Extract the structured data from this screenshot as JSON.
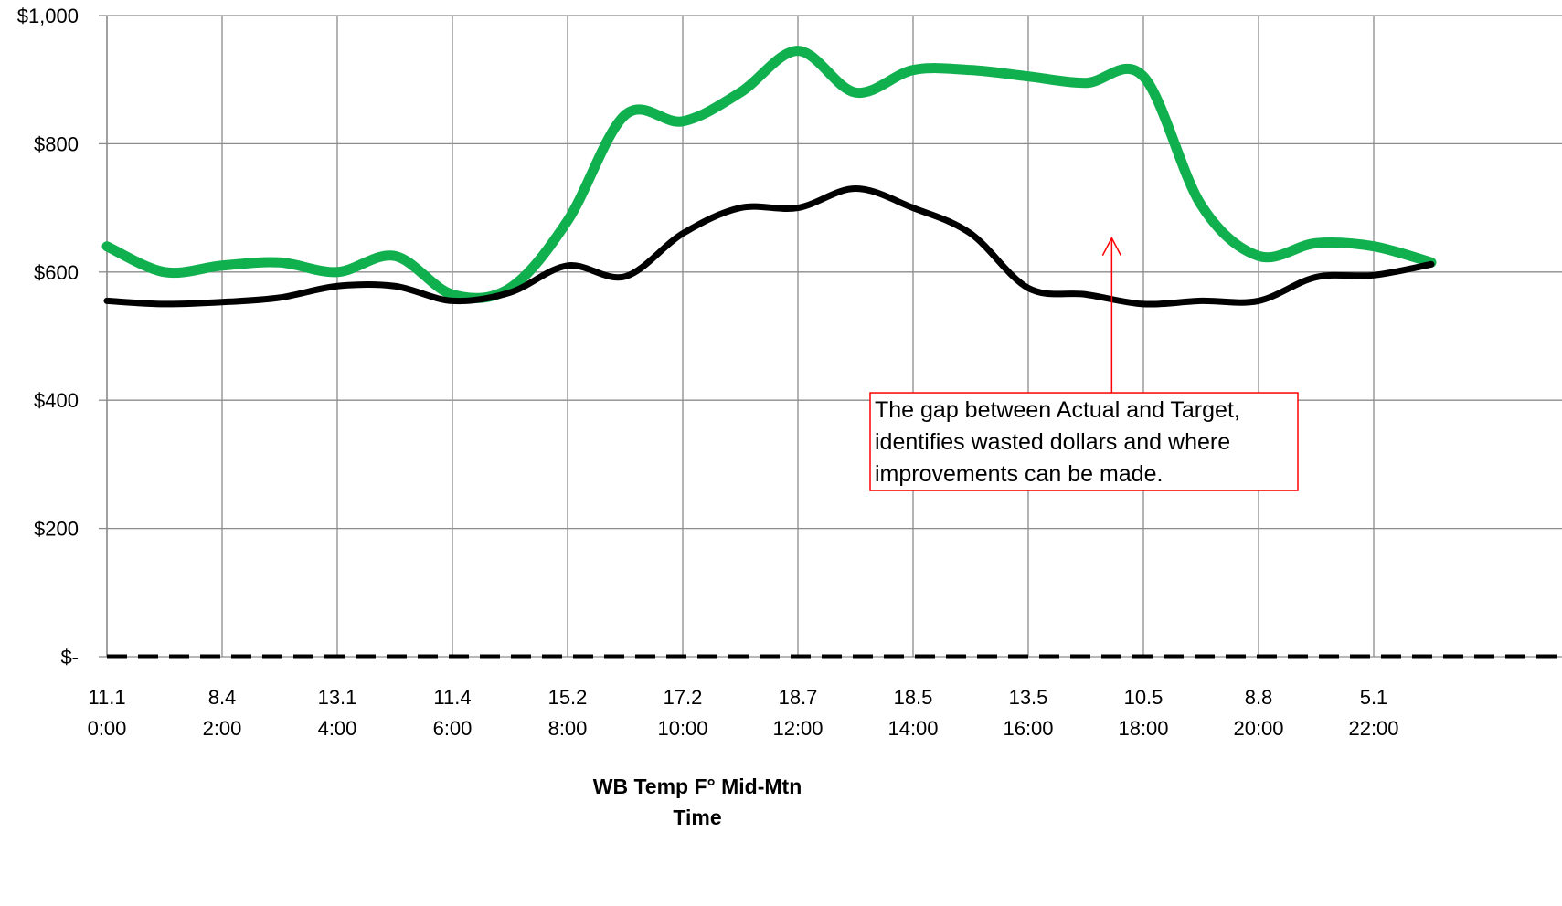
{
  "chart_data": {
    "type": "line",
    "title": "",
    "ylabel": "",
    "xlabel_lines": [
      "WB Temp F°  Mid-Mtn",
      "Time"
    ],
    "ylim": [
      0,
      1000
    ],
    "y_ticks": [
      {
        "value": 0,
        "label": "$-"
      },
      {
        "value": 200,
        "label": "$200"
      },
      {
        "value": 400,
        "label": "$400"
      },
      {
        "value": 600,
        "label": "$600"
      },
      {
        "value": 800,
        "label": "$800"
      },
      {
        "value": 1000,
        "label": "$1,000"
      }
    ],
    "x_tick_labels": [
      {
        "temp": "11.1",
        "time": "0:00"
      },
      {
        "temp": "8.4",
        "time": "2:00"
      },
      {
        "temp": "13.1",
        "time": "4:00"
      },
      {
        "temp": "11.4",
        "time": "6:00"
      },
      {
        "temp": "15.2",
        "time": "8:00"
      },
      {
        "temp": "17.2",
        "time": "10:00"
      },
      {
        "temp": "18.7",
        "time": "12:00"
      },
      {
        "temp": "18.5",
        "time": "14:00"
      },
      {
        "temp": "13.5",
        "time": "16:00"
      },
      {
        "temp": "10.5",
        "time": "18:00"
      },
      {
        "temp": "8.8",
        "time": "20:00"
      },
      {
        "temp": "5.1",
        "time": "22:00"
      }
    ],
    "hours": [
      0,
      1,
      2,
      3,
      4,
      5,
      6,
      7,
      8,
      9,
      10,
      11,
      12,
      13,
      14,
      15,
      16,
      17,
      18,
      19,
      20,
      21,
      22,
      23
    ],
    "grid": true,
    "legend": "none",
    "series": [
      {
        "key": "green",
        "color": "#11b04f",
        "values": [
          640,
          600,
          610,
          615,
          600,
          625,
          565,
          575,
          680,
          845,
          835,
          880,
          945,
          880,
          915,
          915,
          905,
          895,
          905,
          705,
          625,
          645,
          640,
          615
        ]
      },
      {
        "key": "black",
        "color": "#000000",
        "values": [
          555,
          550,
          553,
          560,
          578,
          578,
          555,
          568,
          610,
          593,
          660,
          700,
          700,
          730,
          700,
          660,
          575,
          565,
          550,
          555,
          555,
          592,
          595,
          612
        ]
      },
      {
        "key": "baseline",
        "color": "#000000",
        "dashed": true,
        "values": [
          0,
          0,
          0,
          0,
          0,
          0,
          0,
          0,
          0,
          0,
          0,
          0,
          0,
          0,
          0,
          0,
          0,
          0,
          0,
          0,
          0,
          0,
          0,
          0
        ]
      }
    ],
    "annotation": {
      "lines": [
        "The gap between Actual and Target,",
        "identifies wasted dollars and where",
        "improvements can be made."
      ],
      "color": "#ff0000",
      "arrow_hour": 17.45,
      "arrow_tip_value": 653,
      "box_top_value": 480
    }
  }
}
